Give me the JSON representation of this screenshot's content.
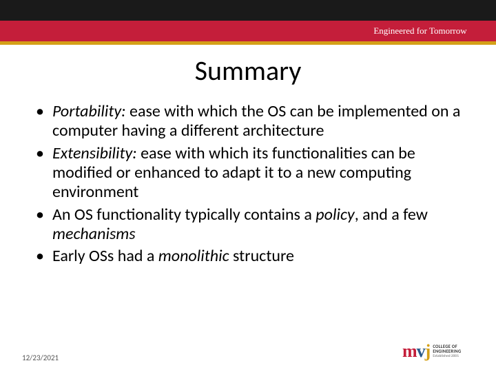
{
  "colors": {
    "top_black": "#1a1a1a",
    "top_red": "#c41e3a",
    "accent": "#d4a017",
    "text": "#000000",
    "bg": "#ffffff"
  },
  "tagline": "Engineered for Tomorrow",
  "title": "Summary",
  "bullets": [
    {
      "term": "Portability:",
      "rest": " ease with which the OS can be implemented on a computer having a different architecture"
    },
    {
      "term": "Extensibility:",
      "rest": " ease with which its functionalities can be modified or enhanced to adapt it to a new computing environment"
    },
    {
      "pre": "An OS functionality typically contains a ",
      "i1": "policy",
      "mid": ", and a few ",
      "i2": "mechanisms"
    },
    {
      "pre": "Early OSs had a ",
      "i1": "monolithic",
      "mid": " structure"
    }
  ],
  "footer": {
    "date": "12/23/2021",
    "logo_mark": {
      "m": "m",
      "v": "v",
      "j": "j"
    },
    "logo_lines": {
      "l1": "COLLEGE OF",
      "l2": "ENGINEERING",
      "l3": "Established 2001"
    }
  }
}
